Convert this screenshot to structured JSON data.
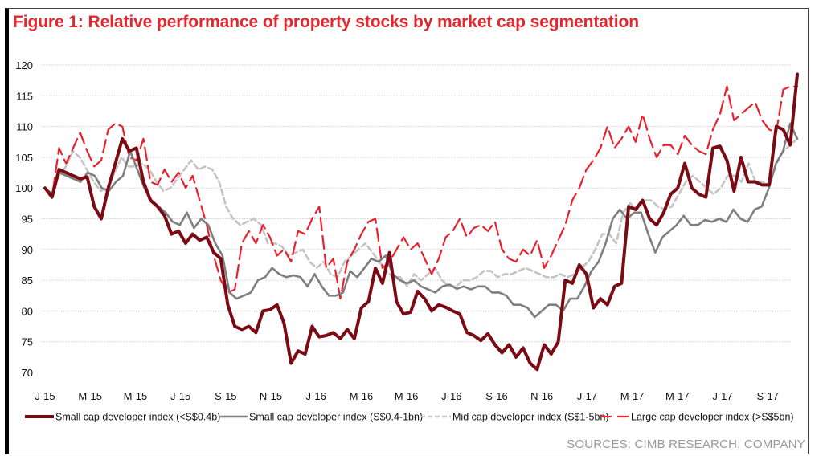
{
  "figure": {
    "title": "Figure 1: Relative performance of property stocks by market cap segmentation",
    "source": "SOURCES: CIMB RESEARCH, COMPANY"
  },
  "chart_data": {
    "type": "line",
    "title": "Figure 1: Relative performance of property stocks by market cap segmentation",
    "xlabel": "",
    "ylabel": "",
    "ylim": [
      70,
      120
    ],
    "yticks": [
      120,
      115,
      110,
      105,
      100,
      95,
      90,
      85,
      80,
      75,
      70
    ],
    "xticks": [
      "J-15",
      "M-15",
      "M-15",
      "J-15",
      "S-15",
      "N-15",
      "J-16",
      "M-16",
      "M-16",
      "J-16",
      "S-16",
      "N-16",
      "J-17",
      "M-17",
      "M-17",
      "J-17",
      "S-17"
    ],
    "grid": true,
    "legend_position": "bottom",
    "points_per_tick_interval": 4,
    "series": [
      {
        "name": "Small cap developer index (<S$0.4b)",
        "color": "#7a0a14",
        "style": "solid-thick",
        "values": [
          100,
          98.5,
          103,
          102.5,
          102,
          101.5,
          101.8,
          97,
          95,
          100,
          104,
          108,
          106,
          106.5,
          101,
          98,
          97,
          95.5,
          92.5,
          93,
          91,
          92.5,
          91.5,
          92,
          89.5,
          88.5,
          81,
          77.5,
          77,
          77.5,
          76.5,
          80,
          80.2,
          81,
          78,
          71.5,
          73.5,
          73,
          77.5,
          75.8,
          76,
          76.5,
          75.5,
          77,
          75.5,
          80.5,
          81.5,
          87,
          84.5,
          89.5,
          81.5,
          79.5,
          79.8,
          83.2,
          82,
          80,
          81,
          80.6,
          80,
          79.5,
          76.5,
          76,
          75.2,
          76.3,
          74.5,
          73.2,
          74.5,
          72.5,
          74,
          71.5,
          70.5,
          74.5,
          73,
          75,
          85,
          84.5,
          87.5,
          86,
          80.5,
          82,
          81,
          84,
          84.5,
          97,
          96.5,
          98,
          95,
          94,
          96,
          99,
          100,
          104,
          100,
          99,
          98.5,
          106.5,
          106.8,
          104.5,
          99.5,
          105,
          101,
          101,
          100.5,
          100.5,
          110,
          109.5,
          107,
          118.5
        ]
      },
      {
        "name": "Small cap developer index (S$0.4-1bn)",
        "color": "#7f7f7f",
        "style": "solid",
        "values": [
          100,
          99,
          102.5,
          102,
          101.5,
          101,
          102.5,
          102,
          100,
          99.5,
          101,
          102,
          106,
          103,
          100,
          98,
          97,
          96,
          94.5,
          94,
          96,
          93.5,
          95,
          94,
          91,
          89,
          83,
          82,
          82.5,
          83,
          85,
          85.5,
          87,
          86,
          85.5,
          85.8,
          85.5,
          84,
          86,
          84,
          82.5,
          82.5,
          83,
          86.5,
          85.5,
          87,
          88.5,
          88,
          89,
          86,
          85,
          84.5,
          85,
          84,
          83.5,
          83,
          84,
          84.3,
          83.6,
          84,
          83.5,
          84,
          84,
          83,
          83,
          82.5,
          81,
          81,
          80.5,
          79,
          80,
          81,
          81,
          80,
          82,
          82,
          84,
          86.5,
          88,
          91,
          95,
          96.5,
          95,
          96,
          96,
          92.5,
          89.5,
          92,
          93,
          94,
          95.5,
          94,
          94,
          94.8,
          94.5,
          95,
          94.5,
          96.5,
          95,
          94.5,
          96.5,
          97,
          100,
          104,
          106,
          110.5,
          108
        ]
      },
      {
        "name": "Mid cap developer index (S$1-5bn)",
        "color": "#c4c4c4",
        "style": "dashed",
        "values": [
          100,
          99,
          102,
          103.5,
          106,
          105,
          103,
          101,
          99.5,
          100,
          102.5,
          105,
          103.5,
          103.5,
          104,
          103,
          101,
          99.5,
          100,
          101.5,
          103,
          104.5,
          103,
          103.5,
          103,
          101,
          97,
          95,
          94,
          94.5,
          95,
          94,
          91,
          91,
          90.5,
          89,
          89.5,
          90,
          88,
          87,
          88,
          86,
          85.5,
          88,
          89,
          90,
          91,
          89.5,
          88,
          86.5,
          85.5,
          85.5,
          84,
          86,
          85,
          86,
          87,
          85,
          84,
          84,
          85,
          85,
          85.5,
          86.5,
          86.5,
          85.5,
          86,
          86,
          86.5,
          87,
          86.5,
          86,
          85.5,
          85.5,
          86,
          85.5,
          86,
          87,
          88,
          90,
          92.5,
          92.5,
          91,
          96,
          97.5,
          96.5,
          98,
          98,
          97,
          96.5,
          97,
          99,
          101,
          102,
          101,
          100,
          99,
          100,
          102,
          102,
          101,
          104,
          101,
          101,
          100.5,
          104,
          106,
          107,
          108
        ]
      },
      {
        "name": "Large cap developer index (>S$5bn)",
        "color": "#e8212e",
        "style": "dashed-long",
        "values": [
          100,
          98.5,
          106.5,
          104,
          106.5,
          109,
          106,
          103.5,
          104.5,
          109.5,
          110.5,
          110,
          105,
          104.5,
          108,
          101,
          100.5,
          103,
          101,
          102.5,
          100,
          102,
          98,
          94,
          89,
          85,
          83,
          83.5,
          91,
          93,
          91,
          94,
          92,
          89,
          90,
          88,
          93,
          92.5,
          95,
          97,
          87,
          88.5,
          82,
          88,
          90,
          92.5,
          94.5,
          95,
          87,
          88,
          90,
          92,
          90,
          91,
          88.5,
          86,
          88.5,
          92,
          93,
          95,
          92,
          93.5,
          94,
          93,
          94.5,
          90,
          88.5,
          88,
          90,
          89,
          91.5,
          87,
          89,
          91.5,
          94,
          98,
          100,
          103,
          104.5,
          106.5,
          110,
          106.5,
          108,
          110,
          107.5,
          112,
          108,
          105,
          107,
          107,
          105.5,
          108.5,
          107,
          106,
          105.5,
          109.5,
          112,
          116.5,
          111,
          112,
          113,
          114,
          111,
          109.5,
          109,
          116,
          116.5,
          116.5
        ]
      }
    ]
  }
}
